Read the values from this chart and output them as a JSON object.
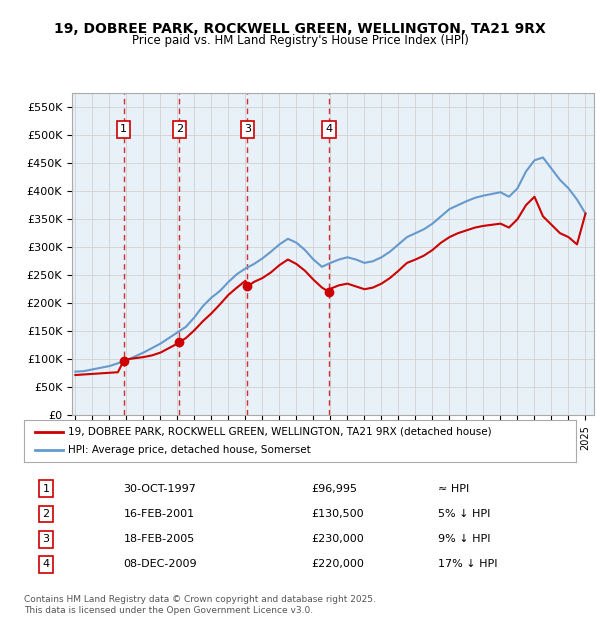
{
  "title": "19, DOBREE PARK, ROCKWELL GREEN, WELLINGTON, TA21 9RX",
  "subtitle": "Price paid vs. HM Land Registry's House Price Index (HPI)",
  "legend1": "19, DOBREE PARK, ROCKWELL GREEN, WELLINGTON, TA21 9RX (detached house)",
  "legend2": "HPI: Average price, detached house, Somerset",
  "footer": "Contains HM Land Registry data © Crown copyright and database right 2025.\nThis data is licensed under the Open Government Licence v3.0.",
  "sale_dates": [
    1997.83,
    2001.12,
    2005.12,
    2009.92
  ],
  "sale_prices": [
    96995,
    130500,
    230000,
    220000
  ],
  "sale_labels": [
    "1",
    "2",
    "3",
    "4"
  ],
  "sale_info": [
    "30-OCT-1997",
    "£96,995",
    "≈ HPI",
    "16-FEB-2001",
    "£130,500",
    "5% ↓ HPI",
    "18-FEB-2005",
    "£230,000",
    "9% ↓ HPI",
    "08-DEC-2009",
    "£220,000",
    "17% ↓ HPI"
  ],
  "hpi_x": [
    1995.0,
    1995.5,
    1996.0,
    1996.5,
    1997.0,
    1997.5,
    1998.0,
    1998.5,
    1999.0,
    1999.5,
    2000.0,
    2000.5,
    2001.0,
    2001.5,
    2002.0,
    2002.5,
    2003.0,
    2003.5,
    2004.0,
    2004.5,
    2005.0,
    2005.5,
    2006.0,
    2006.5,
    2007.0,
    2007.5,
    2008.0,
    2008.5,
    2009.0,
    2009.5,
    2010.0,
    2010.5,
    2011.0,
    2011.5,
    2012.0,
    2012.5,
    2013.0,
    2013.5,
    2014.0,
    2014.5,
    2015.0,
    2015.5,
    2016.0,
    2016.5,
    2017.0,
    2017.5,
    2018.0,
    2018.5,
    2019.0,
    2019.5,
    2020.0,
    2020.5,
    2021.0,
    2021.5,
    2022.0,
    2022.5,
    2023.0,
    2023.5,
    2024.0,
    2024.5,
    2025.0
  ],
  "hpi_y": [
    78000,
    79000,
    82000,
    85000,
    88000,
    93000,
    98000,
    105000,
    112000,
    120000,
    128000,
    138000,
    148000,
    158000,
    175000,
    195000,
    210000,
    222000,
    238000,
    252000,
    262000,
    270000,
    280000,
    292000,
    305000,
    315000,
    308000,
    295000,
    278000,
    265000,
    272000,
    278000,
    282000,
    278000,
    272000,
    275000,
    282000,
    292000,
    305000,
    318000,
    325000,
    332000,
    342000,
    355000,
    368000,
    375000,
    382000,
    388000,
    392000,
    395000,
    398000,
    390000,
    405000,
    435000,
    455000,
    460000,
    440000,
    420000,
    405000,
    385000,
    360000
  ],
  "price_x": [
    1995.0,
    1995.5,
    1996.0,
    1996.5,
    1997.0,
    1997.5,
    1997.83,
    1998.0,
    1998.5,
    1999.0,
    1999.5,
    2000.0,
    2000.5,
    2001.0,
    2001.12,
    2001.5,
    2002.0,
    2002.5,
    2003.0,
    2003.5,
    2004.0,
    2004.5,
    2005.0,
    2005.12,
    2005.5,
    2006.0,
    2006.5,
    2007.0,
    2007.5,
    2008.0,
    2008.5,
    2009.0,
    2009.5,
    2009.92,
    2010.0,
    2010.5,
    2011.0,
    2011.5,
    2012.0,
    2012.5,
    2013.0,
    2013.5,
    2014.0,
    2014.5,
    2015.0,
    2015.5,
    2016.0,
    2016.5,
    2017.0,
    2017.5,
    2018.0,
    2018.5,
    2019.0,
    2019.5,
    2020.0,
    2020.5,
    2021.0,
    2021.5,
    2022.0,
    2022.5,
    2023.0,
    2023.5,
    2024.0,
    2024.5,
    2025.0
  ],
  "price_y": [
    72000,
    73000,
    74000,
    75000,
    76000,
    77000,
    96995,
    100000,
    102000,
    104000,
    107000,
    112000,
    120000,
    128000,
    130500,
    138000,
    152000,
    168000,
    182000,
    198000,
    215000,
    228000,
    240000,
    230000,
    238000,
    245000,
    255000,
    268000,
    278000,
    270000,
    258000,
    242000,
    228000,
    220000,
    226000,
    232000,
    235000,
    230000,
    225000,
    228000,
    235000,
    245000,
    258000,
    272000,
    278000,
    285000,
    295000,
    308000,
    318000,
    325000,
    330000,
    335000,
    338000,
    340000,
    342000,
    335000,
    350000,
    375000,
    390000,
    355000,
    340000,
    325000,
    318000,
    305000,
    360000
  ],
  "ylim": [
    0,
    575000
  ],
  "xlim": [
    1994.8,
    2025.5
  ],
  "background_color": "#e8f0f8",
  "plot_bg": "#ffffff",
  "red_color": "#cc0000",
  "blue_color": "#6699cc",
  "dashed_color": "#cc0000"
}
